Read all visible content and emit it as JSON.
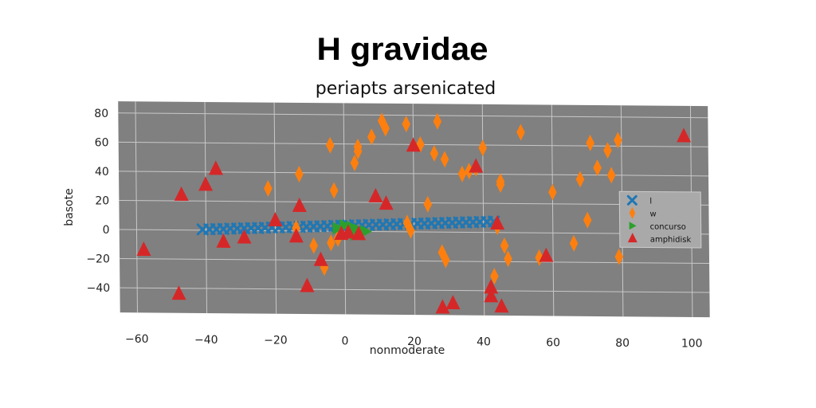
{
  "chart_data": {
    "type": "scatter",
    "title": "H gravidae",
    "subtitle": "periapts arsenicated",
    "xlabel": "nonmoderate",
    "ylabel": "basote",
    "xlim": [
      -65,
      105
    ],
    "ylim": [
      -57,
      88
    ],
    "xticks": [
      -60,
      -40,
      -20,
      0,
      20,
      40,
      60,
      80,
      100
    ],
    "yticks": [
      -40,
      -20,
      0,
      20,
      40,
      60,
      80
    ],
    "grid": true,
    "background": "#808080",
    "legend_position": "right",
    "series": [
      {
        "name": "l",
        "marker": "x",
        "color": "#1f77b4",
        "x": [
          -41,
          -39,
          -37,
          -35,
          -33,
          -31,
          -29,
          -27,
          -25,
          -23,
          -21,
          -19,
          -17,
          -15,
          -13,
          -11,
          -9,
          -7,
          -5,
          -3,
          -1,
          1,
          3,
          5,
          7,
          9,
          11,
          13,
          15,
          17,
          19,
          21,
          23,
          25,
          27,
          29,
          31,
          33,
          35,
          37,
          39,
          41,
          43
        ],
        "y": [
          0.5,
          0.7,
          0.8,
          1.0,
          1.2,
          1.3,
          1.5,
          1.7,
          1.8,
          2.0,
          2.2,
          2.3,
          2.5,
          2.7,
          2.8,
          3.0,
          3.2,
          3.3,
          3.5,
          3.7,
          3.8,
          4.0,
          4.2,
          4.3,
          4.5,
          4.7,
          4.8,
          5.0,
          5.2,
          5.3,
          5.5,
          5.7,
          5.8,
          6.0,
          6.2,
          6.3,
          6.5,
          6.7,
          6.8,
          7.0,
          7.2,
          7.3,
          7.5
        ]
      },
      {
        "name": "w",
        "marker": "diamond",
        "color": "#ff7f0e",
        "x": [
          11,
          12,
          18,
          27,
          51,
          22,
          4,
          4,
          8,
          -4,
          3,
          -22,
          -13,
          -3,
          26,
          29,
          34,
          36,
          40,
          38,
          71,
          76,
          79,
          73,
          77,
          68,
          60,
          70,
          45,
          45,
          44,
          24,
          18,
          19,
          28,
          29,
          43,
          66,
          46,
          47,
          56,
          79,
          -2,
          -9,
          -6,
          -14,
          -4
        ],
        "y": [
          76,
          71,
          74,
          76,
          69,
          60,
          58,
          55,
          65,
          59,
          47,
          29,
          39,
          28,
          54,
          50,
          40,
          42,
          58,
          44,
          62,
          57,
          64,
          45,
          40,
          37,
          28,
          9,
          33,
          35,
          4,
          19,
          6,
          1,
          -14,
          -19,
          -30,
          -7,
          -9,
          -18,
          -17,
          -16,
          -5,
          -10,
          -25,
          2,
          -8
        ]
      },
      {
        "name": "concurso",
        "marker": "triangle-right",
        "color": "#2ca02c",
        "x": [
          -2,
          0,
          2,
          4,
          6,
          3
        ],
        "y": [
          2,
          4,
          3,
          1,
          0,
          -2
        ]
      },
      {
        "name": "amphidisk",
        "marker": "triangle-up",
        "color": "#d62728",
        "x": [
          98,
          -47,
          -40,
          -37,
          -58,
          -48,
          -35,
          -29,
          -20,
          -14,
          -13,
          -7,
          -11,
          -1,
          1,
          4,
          9,
          12,
          20,
          38,
          44,
          42,
          45,
          28,
          31,
          58,
          42
        ],
        "y": [
          67,
          24,
          31,
          42,
          -14,
          -44,
          -8,
          -5,
          7,
          -4,
          17,
          -20,
          -38,
          -2,
          -1,
          -2,
          24,
          19,
          59,
          45,
          6,
          -38,
          -51,
          -52,
          -49,
          -16,
          -44
        ]
      }
    ]
  }
}
